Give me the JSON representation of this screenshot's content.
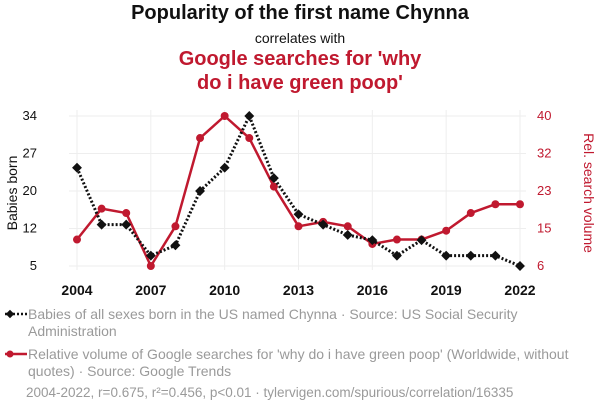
{
  "header": {
    "title": "Popularity of the first name Chynna",
    "subtitle": "correlates with",
    "title2_line1": "Google searches for 'why",
    "title2_line2": "do i have green poop'"
  },
  "colors": {
    "series1": "#111111",
    "series2": "#c0192f",
    "grid": "#eeeeee",
    "muted": "#9a9a9a"
  },
  "legend": {
    "series1": "Babies of all sexes born in the US named Chynna · Source: US Social Security Administration",
    "series2": "Relative volume of Google searches for 'why do i have green poop' (Worldwide, without quotes) · Source: Google Trends"
  },
  "footer": "2004-2022, r=0.675, r²=0.456, p<0.01 · tylervigen.com/spurious/correlation/16335",
  "chart_data": {
    "type": "line",
    "x": [
      2004,
      2005,
      2006,
      2007,
      2008,
      2009,
      2010,
      2011,
      2012,
      2013,
      2014,
      2015,
      2016,
      2017,
      2018,
      2019,
      2020,
      2021,
      2022
    ],
    "xticks": [
      "2004",
      "2007",
      "2010",
      "2013",
      "2016",
      "2019",
      "2022"
    ],
    "y_left": {
      "label": "Babies born",
      "ticks": [
        "5",
        "12",
        "20",
        "27",
        "34"
      ],
      "range": [
        5,
        34
      ]
    },
    "y_right": {
      "label": "Rel. search volume",
      "ticks": [
        "6",
        "15",
        "23",
        "32",
        "40"
      ],
      "range": [
        6,
        40
      ]
    },
    "grid": true,
    "series": [
      {
        "axis": "left",
        "style": "dotted-diamond",
        "values": [
          24,
          13,
          13,
          7,
          9,
          19.5,
          24,
          34,
          22,
          15,
          13,
          11,
          10,
          7,
          10,
          7,
          7,
          7,
          5
        ]
      },
      {
        "axis": "right",
        "style": "solid-circle",
        "values": [
          12,
          19,
          18,
          6,
          15,
          35,
          40,
          35,
          24,
          15,
          16,
          15,
          11,
          12,
          12,
          14,
          18,
          20,
          20
        ]
      }
    ]
  }
}
